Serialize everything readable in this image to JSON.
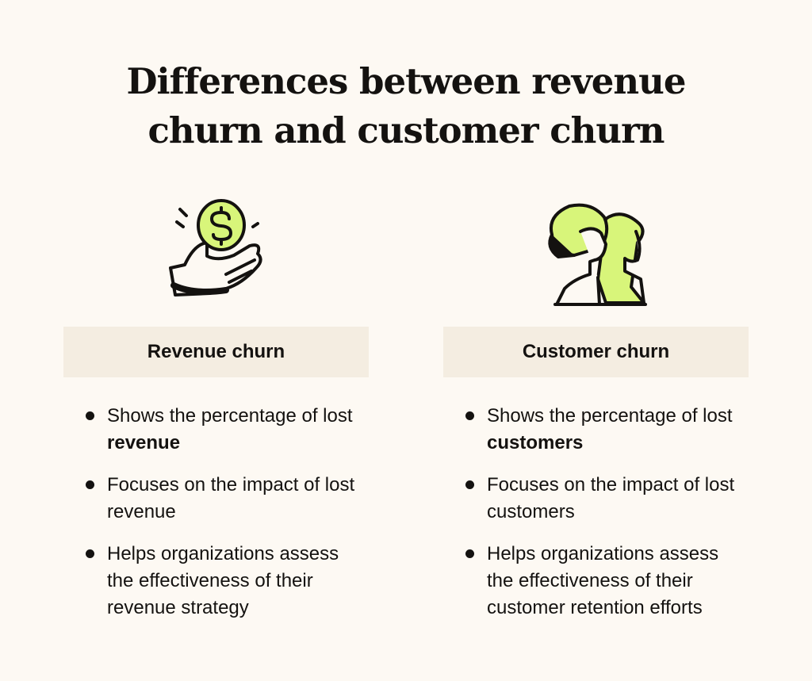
{
  "title": {
    "line1": "Differences between revenue",
    "line2": "churn and customer churn"
  },
  "colors": {
    "background": "#fdf9f3",
    "header_box": "#f4ede1",
    "accent_green": "#d8f57a",
    "ink": "#141210"
  },
  "columns": [
    {
      "icon": "hand-holding-coin-icon",
      "heading": "Revenue churn",
      "bullets": [
        {
          "text": "Shows the percentage of lost ",
          "bold": "revenue"
        },
        {
          "text": "Focuses on the impact of lost revenue",
          "bold": ""
        },
        {
          "text": "Helps organizations assess the effectiveness of their revenue strategy",
          "bold": ""
        }
      ]
    },
    {
      "icon": "two-people-icon",
      "heading": "Customer churn",
      "bullets": [
        {
          "text": "Shows the percentage of lost ",
          "bold": "customers"
        },
        {
          "text": "Focuses on the impact of lost customers",
          "bold": ""
        },
        {
          "text": "Helps organizations assess the effectiveness of their customer retention efforts",
          "bold": ""
        }
      ]
    }
  ]
}
